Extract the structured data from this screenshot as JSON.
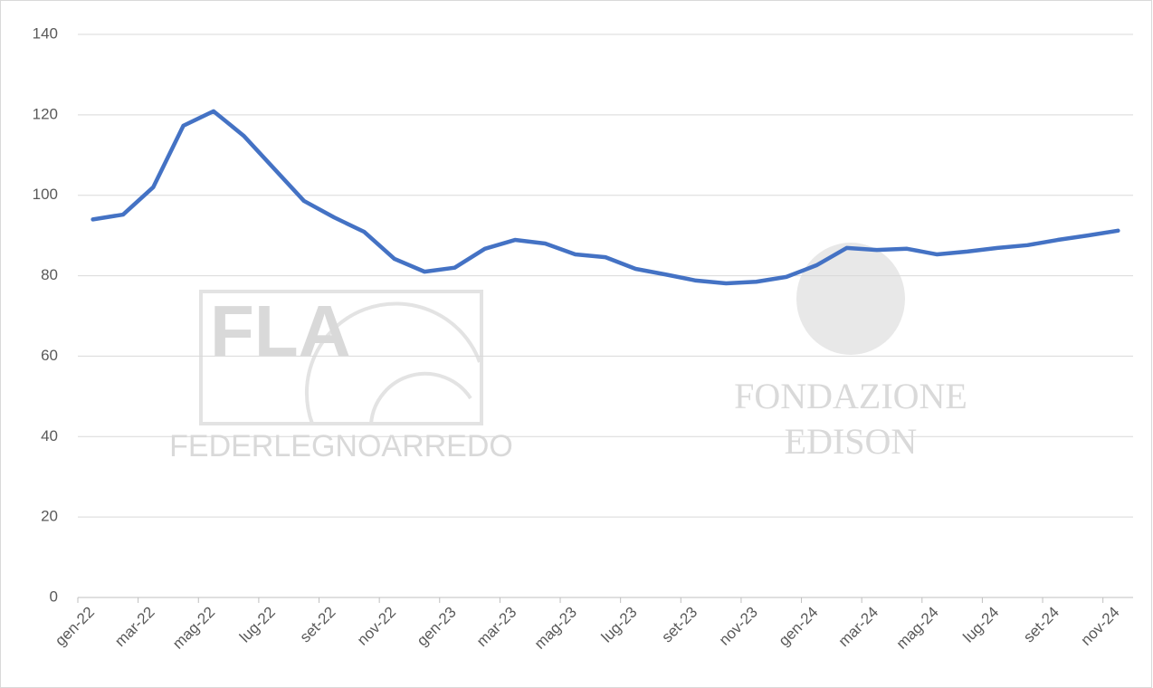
{
  "chart_data": {
    "type": "line",
    "categories": [
      "gen-22",
      null,
      "mar-22",
      null,
      "mag-22",
      null,
      "lug-22",
      null,
      "set-22",
      null,
      "nov-22",
      null,
      "gen-23",
      null,
      "mar-23",
      null,
      "mag-23",
      null,
      "lug-23",
      null,
      "set-23",
      null,
      "nov-23",
      null,
      "gen-24",
      null,
      "mar-24",
      null,
      "mag-24",
      null,
      "lug-24",
      null,
      "set-24",
      null,
      "nov-24"
    ],
    "series": [
      {
        "color": "#4472c4",
        "values": [
          94,
          95.2,
          102,
          117.3,
          120.9,
          114.8,
          106.7,
          98.6,
          94.5,
          90.9,
          84.2,
          81,
          82,
          86.7,
          88.9,
          88,
          85.3,
          84.6,
          81.7,
          80.3,
          78.8,
          78.1,
          78.5,
          79.7,
          82.6,
          86.9,
          86.4,
          86.7,
          85.3,
          86,
          86.9,
          87.6,
          88.9,
          90,
          91.2
        ]
      }
    ],
    "ylim": [
      0,
      140
    ],
    "yticks": [
      0,
      20,
      40,
      60,
      80,
      100,
      120,
      140
    ],
    "grid": true,
    "watermarks": [
      "FLA",
      "FEDERLEGNOARREDO",
      "FONDAZIONE",
      "EDISON"
    ]
  }
}
